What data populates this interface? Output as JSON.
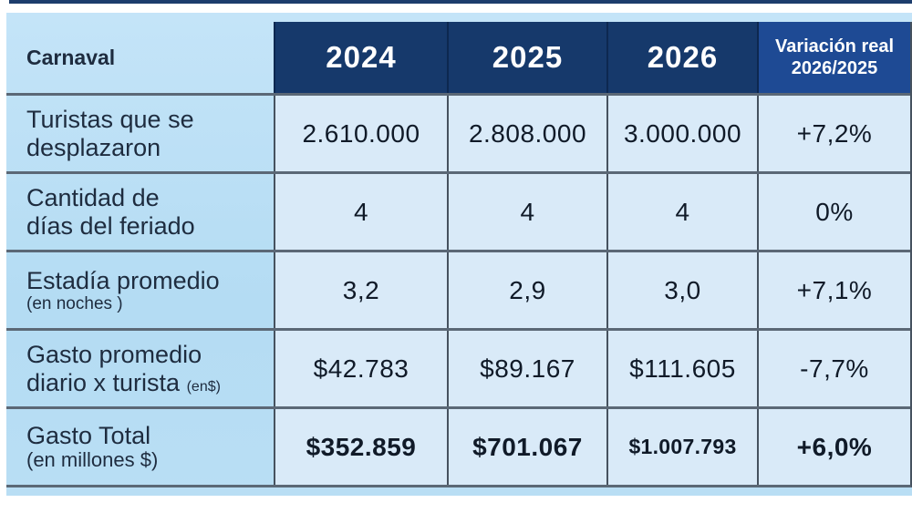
{
  "header": {
    "title": "Carnaval",
    "years": [
      "2024",
      "2025",
      "2026"
    ],
    "variation_line1": "Variación real",
    "variation_line2": "2026/2025"
  },
  "rows": [
    {
      "label_line1": "Turistas que se",
      "label_line2": "desplazaron",
      "label_small": "",
      "y2024": "2.610.000",
      "y2025": "2.808.000",
      "y2026": "3.000.000",
      "variation": "+7,2%"
    },
    {
      "label_line1": "Cantidad de",
      "label_line2": "días del feriado",
      "label_small": "",
      "y2024": "4",
      "y2025": "4",
      "y2026": "4",
      "variation": "0%"
    },
    {
      "label_line1": "Estadía promedio",
      "label_line2": "",
      "label_small": "(en noches )",
      "y2024": "3,2",
      "y2025": "2,9",
      "y2026": "3,0",
      "variation": "+7,1%"
    },
    {
      "label_line1": "Gasto promedio",
      "label_line2": "diario x turista",
      "label_small": "(en$)",
      "y2024": "$42.783",
      "y2025": "$89.167",
      "y2026": "$111.605",
      "variation": "-7,7%"
    },
    {
      "label_line1": "Gasto Total",
      "label_line2": "",
      "label_small": "(en millones $)",
      "y2024": "$352.859",
      "y2025": "$701.067",
      "y2026": "$1.007.793",
      "variation": "+6,0%"
    }
  ],
  "colors": {
    "panel_blue": "#b9def4",
    "cell_blue": "#d9eaf8",
    "header_navy": "#16396b",
    "variation_header_blue": "#1e4a94",
    "top_rule_navy": "#1d3d6c",
    "grid_line": "#5b6876",
    "text_dark": "#1e2c3f"
  },
  "chart_data": {
    "type": "table",
    "title": "Carnaval",
    "columns": [
      "2024",
      "2025",
      "2026",
      "Variación real 2026/2025"
    ],
    "rows": [
      {
        "label": "Turistas que se desplazaron",
        "values": [
          "2.610.000",
          "2.808.000",
          "3.000.000",
          "+7,2%"
        ]
      },
      {
        "label": "Cantidad de días del feriado",
        "values": [
          "4",
          "4",
          "4",
          "0%"
        ]
      },
      {
        "label": "Estadía promedio (en noches)",
        "values": [
          "3,2",
          "2,9",
          "3,0",
          "+7,1%"
        ]
      },
      {
        "label": "Gasto promedio diario x turista (en$)",
        "values": [
          "$42.783",
          "$89.167",
          "$111.605",
          "-7,7%"
        ]
      },
      {
        "label": "Gasto Total (en millones $)",
        "values": [
          "$352.859",
          "$701.067",
          "$1.007.793",
          "+6,0%"
        ]
      }
    ]
  }
}
